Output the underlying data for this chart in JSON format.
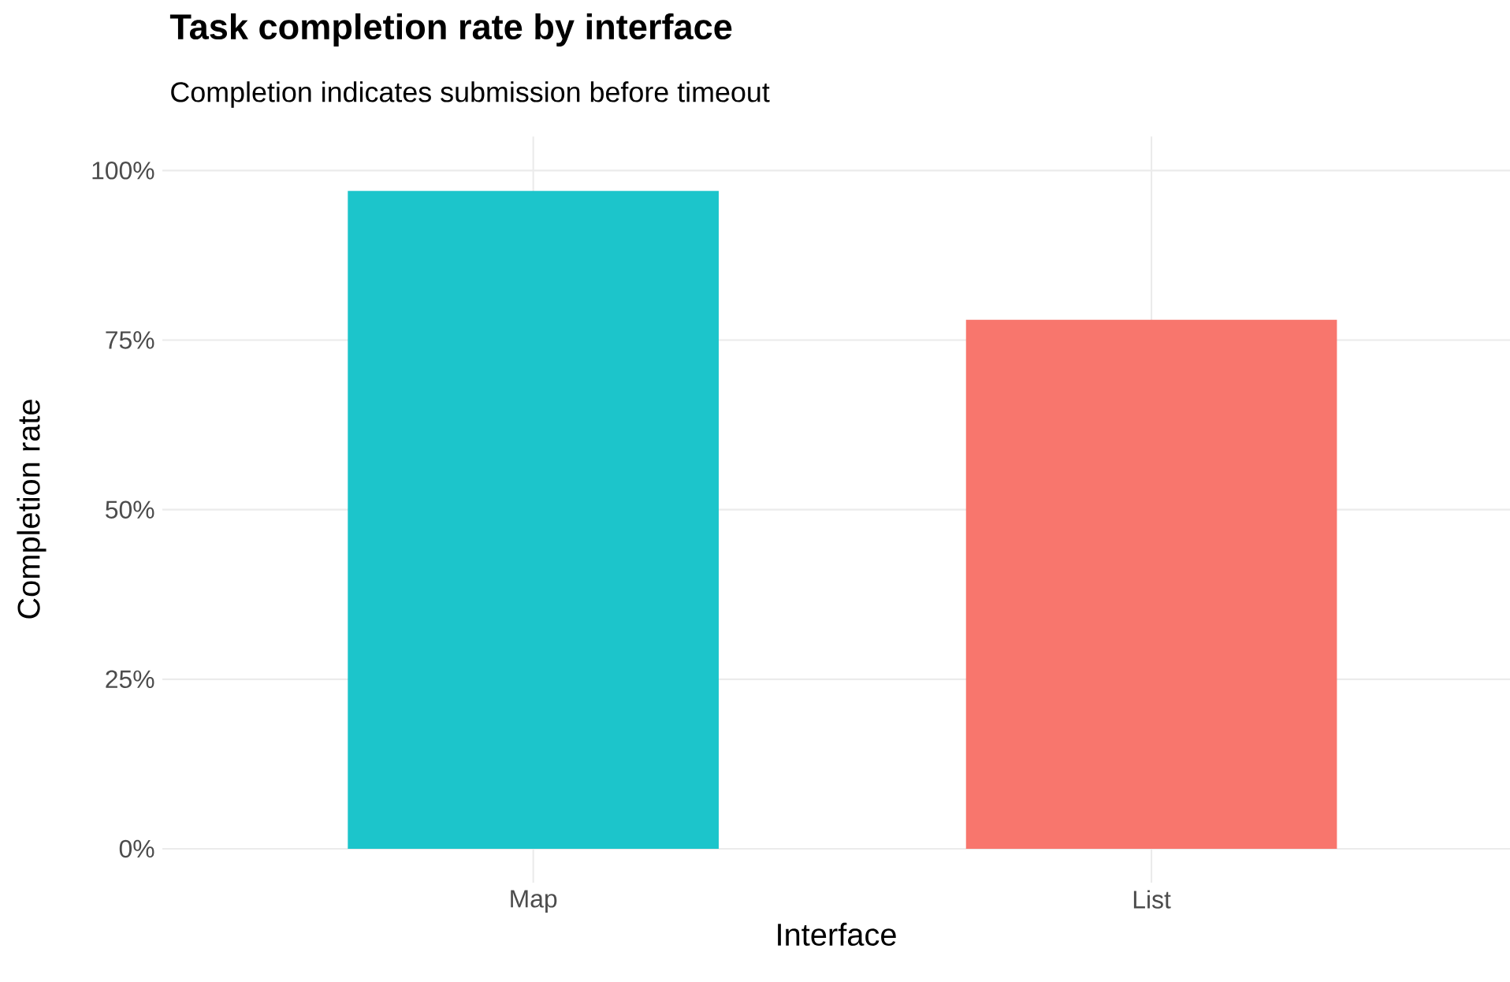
{
  "chart_data": {
    "type": "bar",
    "title": "Task completion rate by interface",
    "subtitle": "Completion indicates submission before timeout",
    "xlabel": "Interface",
    "ylabel": "Completion rate",
    "categories": [
      "Map",
      "List"
    ],
    "values": [
      97,
      78
    ],
    "colors": [
      "#1cc5cb",
      "#f8766d"
    ],
    "ylim": [
      -5,
      105
    ],
    "yticks": [
      {
        "value": 0,
        "label": "0%"
      },
      {
        "value": 25,
        "label": "25%"
      },
      {
        "value": 50,
        "label": "50%"
      },
      {
        "value": 75,
        "label": "75%"
      },
      {
        "value": 100,
        "label": "100%"
      }
    ],
    "grid": true
  }
}
